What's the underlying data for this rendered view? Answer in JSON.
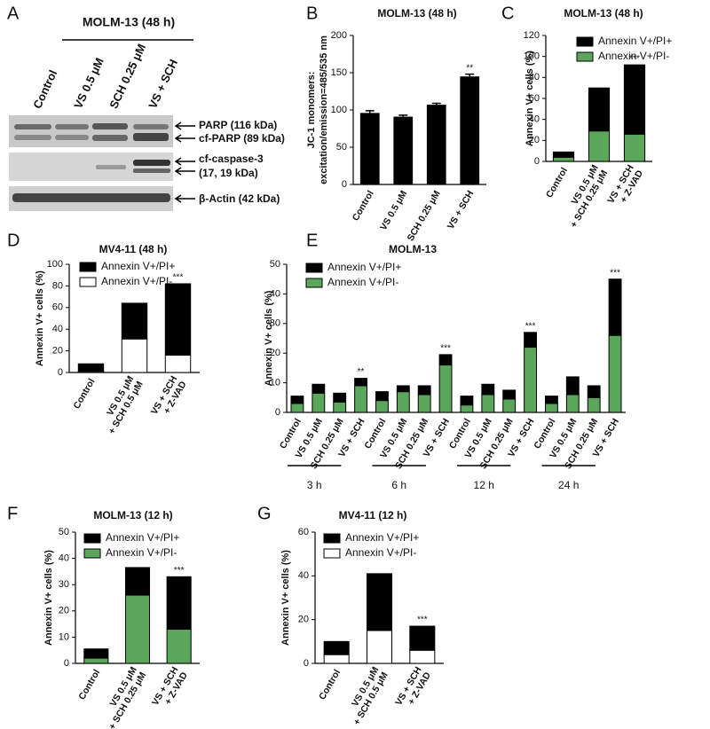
{
  "blot": {
    "panel": "A",
    "title": "MOLM-13 (48 h)",
    "lanes": [
      "Control",
      "VS 0.5 μM",
      "SCH 0.25 μM",
      "VS + SCH"
    ],
    "bands": [
      "PARP (116 kDa)",
      "cf-PARP (89 kDa)",
      "cf-caspase-3",
      "(17, 19 kDa)",
      "β-Actin (42 kDa)"
    ]
  },
  "chart_data": [
    {
      "type": "bar",
      "panel": "B",
      "title": "MOLM-13 (48 h)",
      "ylabel": [
        "JC-1 monomers:",
        "excitation/emission=485/535 nm"
      ],
      "categories": [
        [
          "Control"
        ],
        [
          "VS 0.5 μM"
        ],
        [
          "SCH 0.25 μM"
        ],
        [
          "VS + SCH"
        ]
      ],
      "values": [
        96,
        91,
        107,
        145
      ],
      "errors": [
        3,
        2,
        2,
        3
      ],
      "color": "#000000",
      "stars": [
        null,
        null,
        null,
        "**"
      ],
      "ylim": [
        0,
        200
      ],
      "yticks": [
        0,
        50,
        100,
        150,
        200
      ]
    },
    {
      "type": "stacked-bar",
      "panel": "C",
      "title": "MOLM-13 (48 h)",
      "ylabel": "Annexin V+ cells (%)",
      "categories": [
        [
          "Control"
        ],
        [
          "VS 0.5 μM",
          "+ SCH 0.25 μM"
        ],
        [
          "VS + SCH",
          "+ Z-VAD"
        ]
      ],
      "series": [
        {
          "name": "Annexin V+/PI-",
          "color": "#5aa65a",
          "values": [
            4,
            29,
            26
          ]
        },
        {
          "name": "Annexin V+/PI+",
          "color": "#000000",
          "values": [
            5,
            41,
            66
          ]
        }
      ],
      "stars": [
        null,
        null,
        "***"
      ],
      "ylim": [
        0,
        120
      ],
      "yticks": [
        0,
        20,
        40,
        60,
        80,
        100,
        120
      ]
    },
    {
      "type": "stacked-bar",
      "panel": "D",
      "title": "MV4-11 (48 h)",
      "ylabel": "Annexin V+ cells (%)",
      "categories": [
        [
          "Control"
        ],
        [
          "VS 0.5 μM",
          "+ SCH 0.5 μM"
        ],
        [
          "VS + SCH",
          "+ Z-VAD"
        ]
      ],
      "series": [
        {
          "name": "Annexin V+/PI-",
          "color": "#ffffff",
          "values": [
            1,
            31,
            16
          ]
        },
        {
          "name": "Annexin V+/PI+",
          "color": "#000000",
          "values": [
            7,
            33,
            66
          ]
        }
      ],
      "stars": [
        null,
        null,
        "***"
      ],
      "ylim": [
        0,
        100
      ],
      "yticks": [
        0,
        20,
        40,
        60,
        80,
        100
      ]
    },
    {
      "type": "stacked-bar",
      "panel": "E",
      "title": "MOLM-13",
      "ylabel": "Annexin V+ cells (%)",
      "categories": [
        [
          "Control"
        ],
        [
          "VS 0.5 μM"
        ],
        [
          "SCH 0.25 μM"
        ],
        [
          "VS + SCH"
        ],
        [
          "Control"
        ],
        [
          "VS 0.5 μM"
        ],
        [
          "SCH 0.25 μM"
        ],
        [
          "VS + SCH"
        ],
        [
          "Control"
        ],
        [
          "VS 0.5 μM"
        ],
        [
          "SCH 0.25 μM"
        ],
        [
          "VS + SCH"
        ],
        [
          "Control"
        ],
        [
          "VS 0.5 μM"
        ],
        [
          "SCH 0.25 μM"
        ],
        [
          "VS + SCH"
        ]
      ],
      "groups": [
        "3 h",
        "6 h",
        "12 h",
        "24 h"
      ],
      "series": [
        {
          "name": "Annexin V+/PI-",
          "color": "#5aa65a",
          "values": [
            3,
            6.5,
            3.5,
            9,
            4,
            7,
            6,
            16,
            2.5,
            6,
            4.5,
            22,
            3,
            6,
            5,
            26
          ]
        },
        {
          "name": "Annexin V+/PI+",
          "color": "#000000",
          "values": [
            2.5,
            3,
            3,
            2.5,
            3,
            2,
            3,
            3.5,
            3,
            3.5,
            3,
            5,
            2.5,
            6,
            4,
            19
          ]
        }
      ],
      "stars": [
        null,
        null,
        null,
        "**",
        null,
        null,
        null,
        "***",
        null,
        null,
        null,
        "***",
        null,
        null,
        null,
        "***"
      ],
      "ylim": [
        0,
        50
      ],
      "yticks": [
        0,
        10,
        20,
        30,
        40,
        50
      ]
    },
    {
      "type": "stacked-bar",
      "panel": "F",
      "title": "MOLM-13 (12 h)",
      "ylabel": "Annexin V+ cells (%)",
      "categories": [
        [
          "Control"
        ],
        [
          "VS 0.5 μM",
          "+ SCH 0.25 μM"
        ],
        [
          "VS + SCH",
          "+ Z-VAD"
        ]
      ],
      "series": [
        {
          "name": "Annexin V+/PI-",
          "color": "#5aa65a",
          "values": [
            2,
            26,
            13
          ]
        },
        {
          "name": "Annexin V+/PI+",
          "color": "#000000",
          "values": [
            3.5,
            10.5,
            20
          ]
        }
      ],
      "stars": [
        null,
        null,
        "***"
      ],
      "ylim": [
        0,
        50
      ],
      "yticks": [
        0,
        10,
        20,
        30,
        40,
        50
      ]
    },
    {
      "type": "stacked-bar",
      "panel": "G",
      "title": "MV4-11 (12 h)",
      "ylabel": "Annexin V+ cells (%)",
      "categories": [
        [
          "Control"
        ],
        [
          "VS 0.5 μM",
          "+ SCH 0.5 μM"
        ],
        [
          "VS + SCH",
          "+ Z-VAD"
        ]
      ],
      "series": [
        {
          "name": "Annexin V+/PI-",
          "color": "#ffffff",
          "values": [
            4,
            15,
            6
          ]
        },
        {
          "name": "Annexin V+/PI+",
          "color": "#000000",
          "values": [
            6,
            26,
            11
          ]
        }
      ],
      "stars": [
        null,
        null,
        "***"
      ],
      "ylim": [
        0,
        60
      ],
      "yticks": [
        0,
        20,
        40,
        60
      ]
    }
  ]
}
